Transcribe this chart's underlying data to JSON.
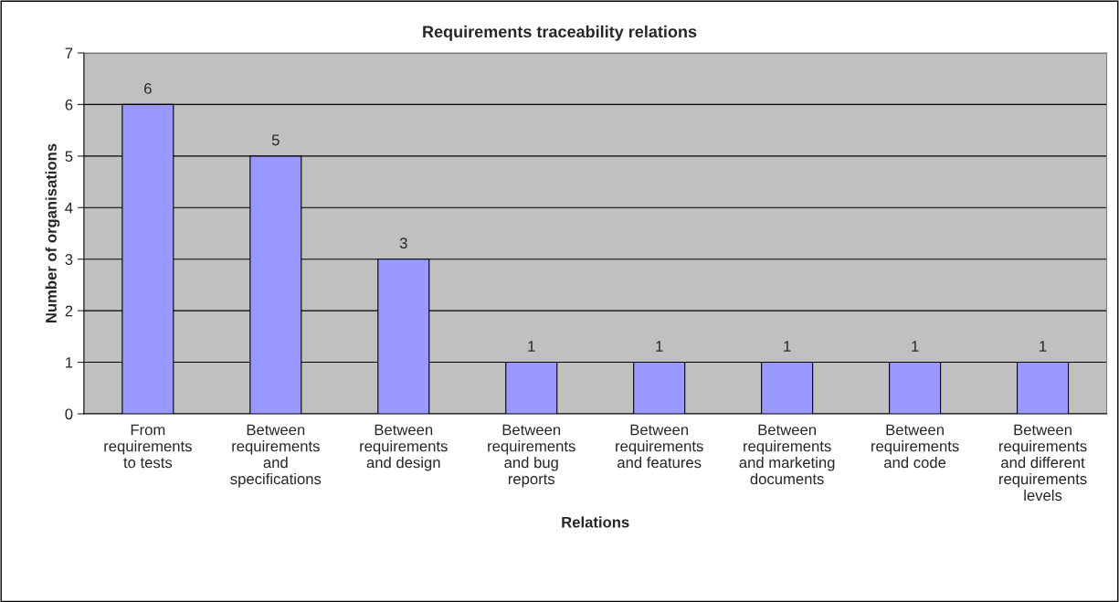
{
  "chart_data": {
    "type": "bar",
    "title": "Requirements traceability relations",
    "xlabel": "Relations",
    "ylabel": "Number of organisations",
    "categories": [
      "From\nrequirements\nto tests",
      "Between\nrequirements\nand\nspecifications",
      "Between\nrequirements\nand design",
      "Between\nrequirements\nand bug\nreports",
      "Between\nrequirements\nand features",
      "Between\nrequirements\nand marketing\ndocuments",
      "Between\nrequirements\nand code",
      "Between\nrequirements\nand different\nrequirements\nlevels"
    ],
    "values": [
      6,
      5,
      3,
      1,
      1,
      1,
      1,
      1
    ],
    "color": "#9999ff",
    "ylim": [
      0,
      7
    ],
    "yticks": [
      0,
      1,
      2,
      3,
      4,
      5,
      6,
      7
    ],
    "grid": "y",
    "data_labels": true,
    "legend": false
  }
}
